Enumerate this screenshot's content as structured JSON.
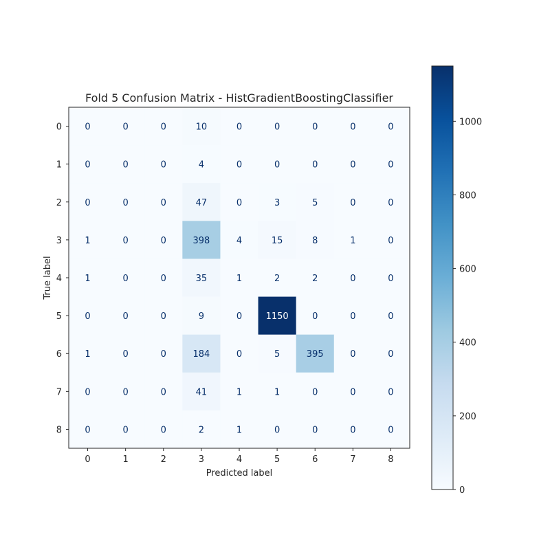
{
  "chart_data": {
    "type": "heatmap",
    "title": "Fold 5 Confusion Matrix - HistGradientBoostingClassifier",
    "xlabel": "Predicted label",
    "ylabel": "True label",
    "x_categories": [
      "0",
      "1",
      "2",
      "3",
      "4",
      "5",
      "6",
      "7",
      "8"
    ],
    "y_categories": [
      "0",
      "1",
      "2",
      "3",
      "4",
      "5",
      "6",
      "7",
      "8"
    ],
    "values": [
      [
        0,
        0,
        0,
        10,
        0,
        0,
        0,
        0,
        0
      ],
      [
        0,
        0,
        0,
        4,
        0,
        0,
        0,
        0,
        0
      ],
      [
        0,
        0,
        0,
        47,
        0,
        3,
        5,
        0,
        0
      ],
      [
        1,
        0,
        0,
        398,
        4,
        15,
        8,
        1,
        0
      ],
      [
        1,
        0,
        0,
        35,
        1,
        2,
        2,
        0,
        0
      ],
      [
        0,
        0,
        0,
        9,
        0,
        1150,
        0,
        0,
        0
      ],
      [
        1,
        0,
        0,
        184,
        0,
        5,
        395,
        0,
        0
      ],
      [
        0,
        0,
        0,
        41,
        1,
        1,
        0,
        0,
        0
      ],
      [
        0,
        0,
        0,
        2,
        1,
        0,
        0,
        0,
        0
      ]
    ],
    "colormap": "Blues",
    "colorbar": {
      "min": 0,
      "max": 1150,
      "ticks": [
        0,
        200,
        400,
        600,
        800,
        1000
      ],
      "tick_labels": [
        "0",
        "200",
        "400",
        "600",
        "800",
        "1000"
      ]
    },
    "text_color_light": "#ffffff",
    "text_color_dark": "#08306b",
    "grid": false
  }
}
